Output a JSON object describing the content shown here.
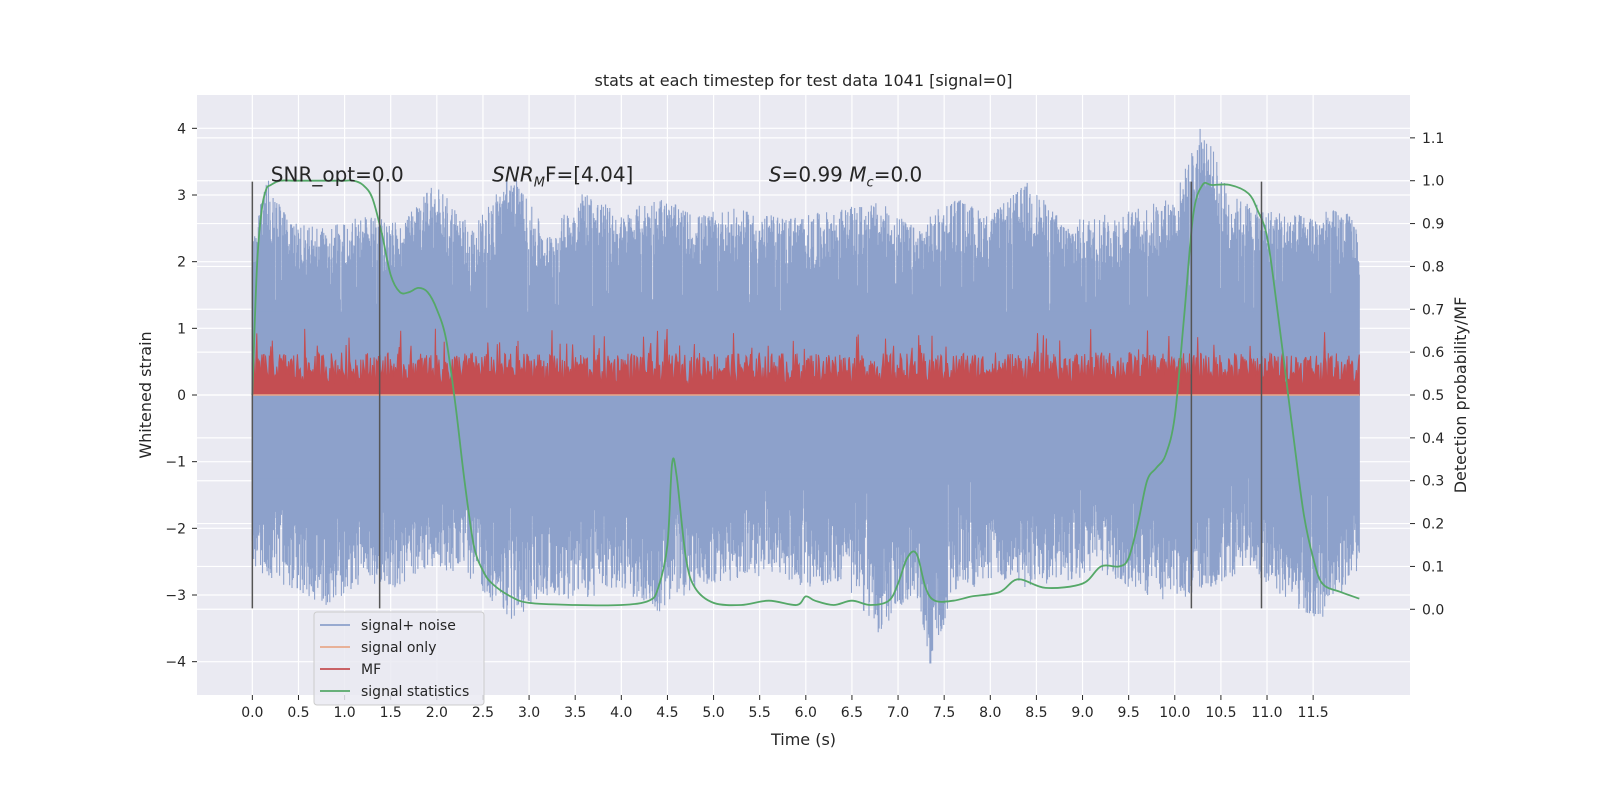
{
  "chart_data": {
    "type": "line",
    "title": "stats at each timestep for test data 1041 [signal=0]",
    "xlabel": "Time (s)",
    "ylabel_left": "Whitened strain",
    "ylabel_right": "Detection probability/MF",
    "xlim": [
      -0.6,
      12.55
    ],
    "ylim_left": [
      -4.5,
      4.5
    ],
    "ylim_right": [
      -0.2,
      1.2
    ],
    "x_ticks": [
      0.0,
      0.5,
      1.0,
      1.5,
      2.0,
      2.5,
      3.0,
      3.5,
      4.0,
      4.5,
      5.0,
      5.5,
      6.0,
      6.5,
      7.0,
      7.5,
      8.0,
      8.5,
      9.0,
      9.5,
      10.0,
      10.5,
      11.0,
      11.5
    ],
    "x_tick_labels": [
      "0.0",
      "0.5",
      "1.0",
      "1.5",
      "2.0",
      "2.5",
      "3.0",
      "3.5",
      "4.0",
      "4.5",
      "5.0",
      "5.5",
      "6.0",
      "6.5",
      "7.0",
      "7.5",
      "8.0",
      "8.5",
      "9.0",
      "9.5",
      "10.0",
      "10.5",
      "11.0",
      "11.5"
    ],
    "y_left_ticks": [
      -4,
      -3,
      -2,
      -1,
      0,
      1,
      2,
      3,
      4
    ],
    "y_left_tick_labels": [
      "−4",
      "−3",
      "−2",
      "−1",
      "0",
      "1",
      "2",
      "3",
      "4"
    ],
    "y_right_ticks": [
      0.0,
      0.1,
      0.2,
      0.3,
      0.4,
      0.5,
      0.6,
      0.7,
      0.8,
      0.9,
      1.0,
      1.1
    ],
    "y_right_tick_labels": [
      "0.0",
      "0.1",
      "0.2",
      "0.3",
      "0.4",
      "0.5",
      "0.6",
      "0.7",
      "0.8",
      "0.9",
      "1.0",
      "1.1"
    ],
    "grid": true,
    "background": "#eaeaf2",
    "series": [
      {
        "name": "signal+ noise",
        "axis": "left",
        "color": "#8da1cb",
        "x_range": [
          0.0,
          12.0
        ],
        "upper_envelope": [
          [
            0.0,
            2.3
          ],
          [
            0.15,
            3.3
          ],
          [
            0.4,
            2.6
          ],
          [
            0.8,
            2.5
          ],
          [
            1.2,
            2.7
          ],
          [
            1.6,
            2.6
          ],
          [
            2.0,
            3.2
          ],
          [
            2.4,
            2.5
          ],
          [
            2.8,
            3.4
          ],
          [
            3.2,
            2.4
          ],
          [
            3.6,
            3.1
          ],
          [
            4.0,
            2.7
          ],
          [
            4.4,
            3.0
          ],
          [
            4.8,
            2.7
          ],
          [
            5.2,
            2.8
          ],
          [
            5.6,
            2.7
          ],
          [
            6.0,
            2.7
          ],
          [
            6.4,
            2.8
          ],
          [
            6.8,
            2.9
          ],
          [
            7.2,
            2.5
          ],
          [
            7.6,
            3.0
          ],
          [
            8.0,
            2.7
          ],
          [
            8.4,
            3.2
          ],
          [
            8.8,
            2.6
          ],
          [
            9.2,
            2.7
          ],
          [
            9.6,
            2.8
          ],
          [
            10.0,
            3.0
          ],
          [
            10.3,
            4.1
          ],
          [
            10.6,
            3.0
          ],
          [
            11.0,
            2.8
          ],
          [
            11.4,
            2.7
          ],
          [
            11.8,
            2.8
          ],
          [
            12.0,
            2.6
          ]
        ],
        "lower_envelope": [
          [
            0.0,
            -2.6
          ],
          [
            0.4,
            -2.9
          ],
          [
            0.8,
            -3.2
          ],
          [
            1.2,
            -2.8
          ],
          [
            1.6,
            -2.9
          ],
          [
            2.0,
            -2.6
          ],
          [
            2.4,
            -2.8
          ],
          [
            2.8,
            -3.4
          ],
          [
            3.2,
            -3.0
          ],
          [
            3.6,
            -3.1
          ],
          [
            4.0,
            -2.9
          ],
          [
            4.4,
            -3.3
          ],
          [
            4.8,
            -2.9
          ],
          [
            5.2,
            -2.8
          ],
          [
            5.6,
            -2.7
          ],
          [
            6.0,
            -2.9
          ],
          [
            6.4,
            -2.8
          ],
          [
            6.8,
            -3.6
          ],
          [
            7.2,
            -3.0
          ],
          [
            7.35,
            -4.1
          ],
          [
            7.6,
            -3.0
          ],
          [
            8.0,
            -2.8
          ],
          [
            8.4,
            -2.9
          ],
          [
            8.8,
            -2.8
          ],
          [
            9.2,
            -2.7
          ],
          [
            9.6,
            -3.0
          ],
          [
            10.0,
            -3.1
          ],
          [
            10.4,
            -2.9
          ],
          [
            10.8,
            -2.6
          ],
          [
            11.2,
            -3.1
          ],
          [
            11.6,
            -3.4
          ],
          [
            12.0,
            -2.6
          ]
        ]
      },
      {
        "name": "signal only",
        "axis": "left",
        "color": "#e8a98b",
        "x": [
          0.0,
          12.0
        ],
        "y": [
          0.0,
          0.0
        ]
      },
      {
        "name": "MF",
        "axis": "left",
        "color": "#c44e52",
        "x_range": [
          0.0,
          12.0
        ],
        "baseline": 0.0,
        "typical_peak": 0.65,
        "max_peak": 1.0
      },
      {
        "name": "signal statistics",
        "axis": "right",
        "color": "#55a868",
        "x": [
          0.0,
          0.05,
          0.1,
          0.15,
          0.2,
          0.3,
          0.45,
          0.6,
          0.8,
          1.0,
          1.1,
          1.2,
          1.3,
          1.4,
          1.5,
          1.6,
          1.7,
          1.8,
          1.9,
          2.0,
          2.1,
          2.2,
          2.3,
          2.4,
          2.5,
          2.6,
          2.8,
          3.0,
          3.5,
          4.0,
          4.3,
          4.4,
          4.5,
          4.55,
          4.6,
          4.7,
          4.8,
          5.0,
          5.3,
          5.6,
          5.9,
          6.0,
          6.1,
          6.3,
          6.5,
          6.7,
          6.9,
          7.0,
          7.1,
          7.2,
          7.3,
          7.4,
          7.6,
          7.8,
          8.1,
          8.3,
          8.6,
          9.0,
          9.2,
          9.4,
          9.5,
          9.6,
          9.7,
          9.8,
          9.9,
          10.0,
          10.1,
          10.2,
          10.3,
          10.4,
          10.6,
          10.8,
          10.9,
          11.0,
          11.1,
          11.2,
          11.3,
          11.4,
          11.5,
          11.6,
          11.8,
          12.0
        ],
        "y": [
          0.5,
          0.8,
          0.93,
          0.98,
          0.99,
          1.0,
          1.0,
          1.0,
          1.0,
          1.0,
          1.0,
          0.99,
          0.96,
          0.88,
          0.78,
          0.74,
          0.74,
          0.75,
          0.74,
          0.7,
          0.63,
          0.48,
          0.3,
          0.15,
          0.09,
          0.06,
          0.03,
          0.015,
          0.01,
          0.01,
          0.02,
          0.05,
          0.15,
          0.34,
          0.31,
          0.12,
          0.05,
          0.015,
          0.01,
          0.02,
          0.01,
          0.03,
          0.02,
          0.01,
          0.02,
          0.01,
          0.02,
          0.06,
          0.12,
          0.13,
          0.05,
          0.02,
          0.02,
          0.03,
          0.04,
          0.07,
          0.05,
          0.06,
          0.1,
          0.1,
          0.12,
          0.2,
          0.3,
          0.33,
          0.36,
          0.45,
          0.68,
          0.92,
          0.99,
          0.99,
          0.99,
          0.97,
          0.93,
          0.87,
          0.72,
          0.55,
          0.38,
          0.22,
          0.12,
          0.06,
          0.04,
          0.025
        ]
      }
    ],
    "vertical_lines_x": [
      0.0,
      1.38,
      10.18,
      10.94
    ],
    "vertical_lines_range_left": [
      -3.2,
      3.2
    ],
    "legend": {
      "location": "lower left",
      "entries": [
        "signal+ noise",
        "signal only",
        "MF",
        "signal statistics"
      ]
    },
    "annotations": [
      {
        "x": 0.2,
        "y": 3.2,
        "axis": "left",
        "text": "SNR_opt=0.0"
      },
      {
        "x": 2.6,
        "y": 3.2,
        "axis": "left",
        "text": "SNR_MF=[4.04]",
        "math_main": "SNR",
        "math_sub": "M",
        "math_after": "F=[4.04]"
      },
      {
        "x": 5.6,
        "y": 3.2,
        "axis": "left",
        "text": "S=0.99   M_c=0.0",
        "math_main": "S",
        "math_mid": "=0.99   ",
        "math_main2": "M",
        "math_sub2": "c",
        "math_after2": "=0.0"
      }
    ]
  }
}
